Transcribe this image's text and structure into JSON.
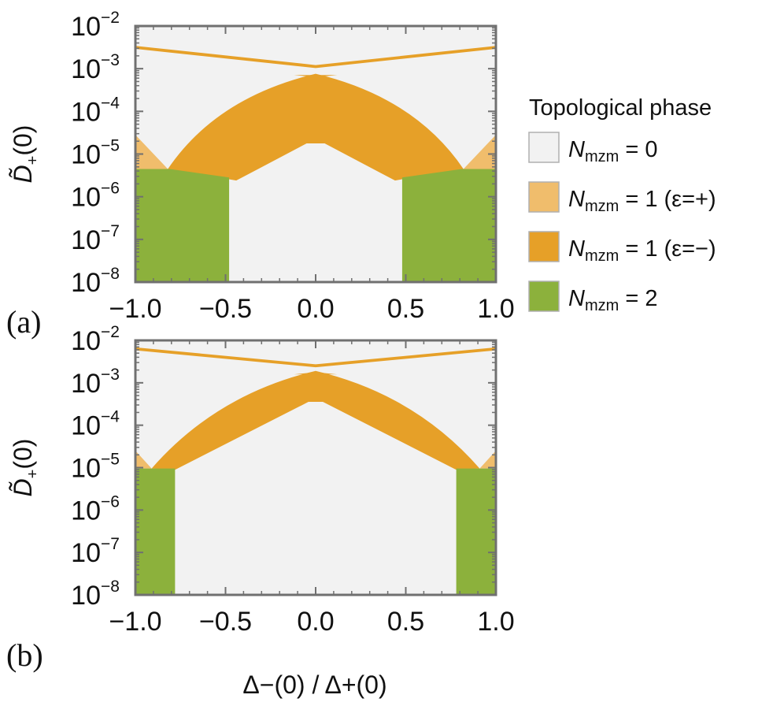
{
  "chart_data": [
    {
      "id": "a",
      "type": "region",
      "panel_label": "(a)",
      "ylabel": "D̃+(0)",
      "xlabel": "",
      "xlim": [
        -1.0,
        1.0
      ],
      "ylim_log10": [
        -8,
        -2
      ],
      "x_ticks": [
        "−1.0",
        "−0.5",
        "0.0",
        "0.5",
        "1.0"
      ],
      "x_tick_values": [
        -1.0,
        -0.5,
        0.0,
        0.5,
        1.0
      ],
      "y_tick_exponents": [
        "-8",
        "-7",
        "-6",
        "-5",
        "-4",
        "-3",
        "-2"
      ],
      "regions": {
        "light_wings_top_log10": -4.55,
        "orange_outer_x": 0.82,
        "orange_inner_x": 0.44,
        "orange_inner_log10": -5.62,
        "orange_bottom_log10": -5.62,
        "orange_peak_log10": -3.12,
        "orange_notch_log10": -4.75,
        "orange_notch_halfwidth": 0.05,
        "green_outer_x": 0.81,
        "green_inner_x": 0.48,
        "green_top_log10": -5.35,
        "green_inner_top_log10": -5.55,
        "line_end_log10": -2.5,
        "line_center_log10": -2.95,
        "line_width_decades": 0.07,
        "cap_bottom_log10": -3.05
      }
    },
    {
      "id": "b",
      "type": "region",
      "panel_label": "(b)",
      "ylabel": "D̃+(0)",
      "xlabel": "Δ−(0) / Δ+(0)",
      "xlim": [
        -1.0,
        1.0
      ],
      "ylim_log10": [
        -8,
        -2
      ],
      "x_ticks": [
        "−1.0",
        "−0.5",
        "0.0",
        "0.5",
        "1.0"
      ],
      "x_tick_values": [
        -1.0,
        -0.5,
        0.0,
        0.5,
        1.0
      ],
      "y_tick_exponents": [
        "-8",
        "-7",
        "-6",
        "-5",
        "-4",
        "-3",
        "-2"
      ],
      "regions": {
        "light_wings_top_log10": -4.6,
        "orange_outer_x": 0.91,
        "orange_inner_x": 0.78,
        "orange_inner_log10": -5.0,
        "orange_bottom_log10": -5.05,
        "orange_peak_log10": -2.72,
        "orange_notch_log10": -3.45,
        "orange_notch_halfwidth": 0.0,
        "green_outer_x": 0.9,
        "green_inner_x": 0.78,
        "green_top_log10": -5.02,
        "green_inner_top_log10": -5.02,
        "line_end_log10": -2.2,
        "line_center_log10": -2.6,
        "line_width_decades": 0.07,
        "cap_bottom_log10": -2.6
      }
    }
  ],
  "legend": {
    "title": "Topological phase",
    "items": [
      {
        "label_sym": "N",
        "label_sub": "mzm",
        "label_rest": " = 0",
        "color": "#f2f2f2"
      },
      {
        "label_sym": "N",
        "label_sub": "mzm",
        "label_rest": " = 1 (ε=+)",
        "color": "#f0bd6c"
      },
      {
        "label_sym": "N",
        "label_sub": "mzm",
        "label_rest": " = 1 (ε=−)",
        "color": "#e6a028"
      },
      {
        "label_sym": "N",
        "label_sub": "mzm",
        "label_rest": " = 2",
        "color": "#8cb13c"
      }
    ]
  },
  "colors": {
    "background": "#f2f2f2",
    "frame": "#707070",
    "light_orange": "#f0bd6c",
    "orange": "#e6a028",
    "green": "#8cb13c"
  }
}
